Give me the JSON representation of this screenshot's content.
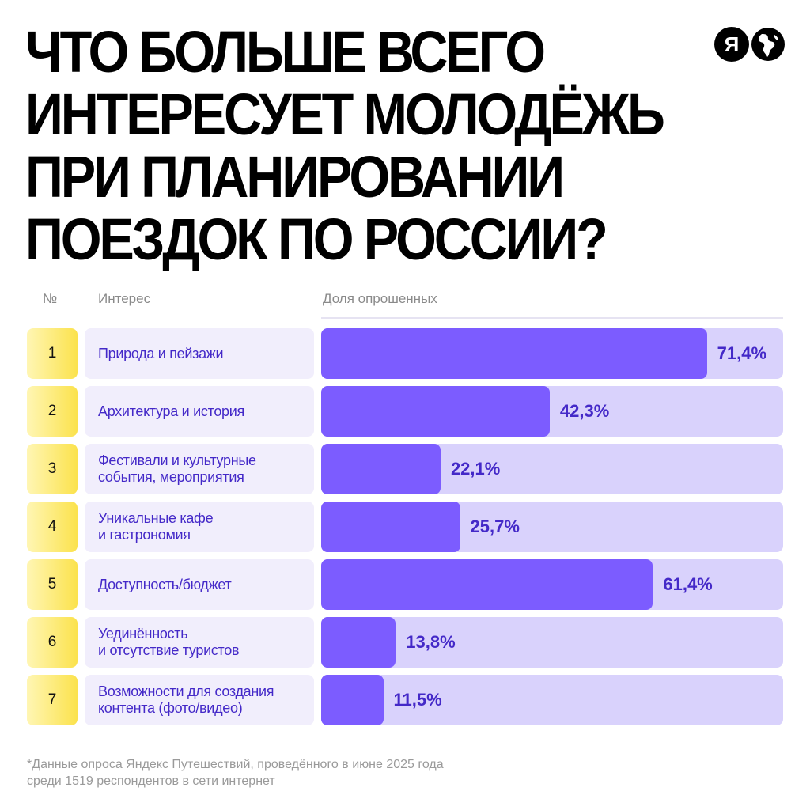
{
  "title": {
    "lines": [
      "ЧТО БОЛЬШЕ ВСЕГО",
      "ИНТЕРЕСУЕТ МОЛОДЁЖЬ",
      "ПРИ ПЛАНИРОВАНИИ",
      "ПОЕЗДОК ПО РОССИИ?"
    ]
  },
  "logos": {
    "ya_letter": "Я",
    "ya_icon": "yandex-logo-icon",
    "globe_icon": "globe-icon"
  },
  "table": {
    "header_num": "№",
    "header_interest": "Интерес",
    "header_share": "Доля опрошенных"
  },
  "colors": {
    "bar_fill": "#7c5cff",
    "bar_track": "#d9d2fc",
    "label_bg": "#f1eefc",
    "label_text": "#4429c8",
    "num_bg_start": "#fff6b4",
    "num_bg_end": "#fbe24c"
  },
  "chart_data": {
    "type": "bar",
    "orientation": "horizontal",
    "xlim": [
      0,
      100
    ],
    "rows": [
      {
        "num": "1",
        "label": "Природа и пейзажи",
        "value": 71.4,
        "display": "71,4%"
      },
      {
        "num": "2",
        "label": "Архитектура и история",
        "value": 42.3,
        "display": "42,3%"
      },
      {
        "num": "3",
        "label": "Фестивали и культурные\nсобытия, мероприятия",
        "value": 22.1,
        "display": "22,1%"
      },
      {
        "num": "4",
        "label": "Уникальные кафе\nи гастрономия",
        "value": 25.7,
        "display": "25,7%"
      },
      {
        "num": "5",
        "label": "Доступность/бюджет",
        "value": 61.4,
        "display": "61,4%"
      },
      {
        "num": "6",
        "label": "Уединённость\nи отсутствие туристов",
        "value": 13.8,
        "display": "13,8%"
      },
      {
        "num": "7",
        "label": "Возможности для создания\nконтента (фото/видео)",
        "value": 11.5,
        "display": "11,5%"
      }
    ]
  },
  "footnote": {
    "line1": "*Данные опроса Яндекс Путешествий, проведённого в июне 2025 года",
    "line2": "среди 1519 респондентов в сети интернет"
  }
}
